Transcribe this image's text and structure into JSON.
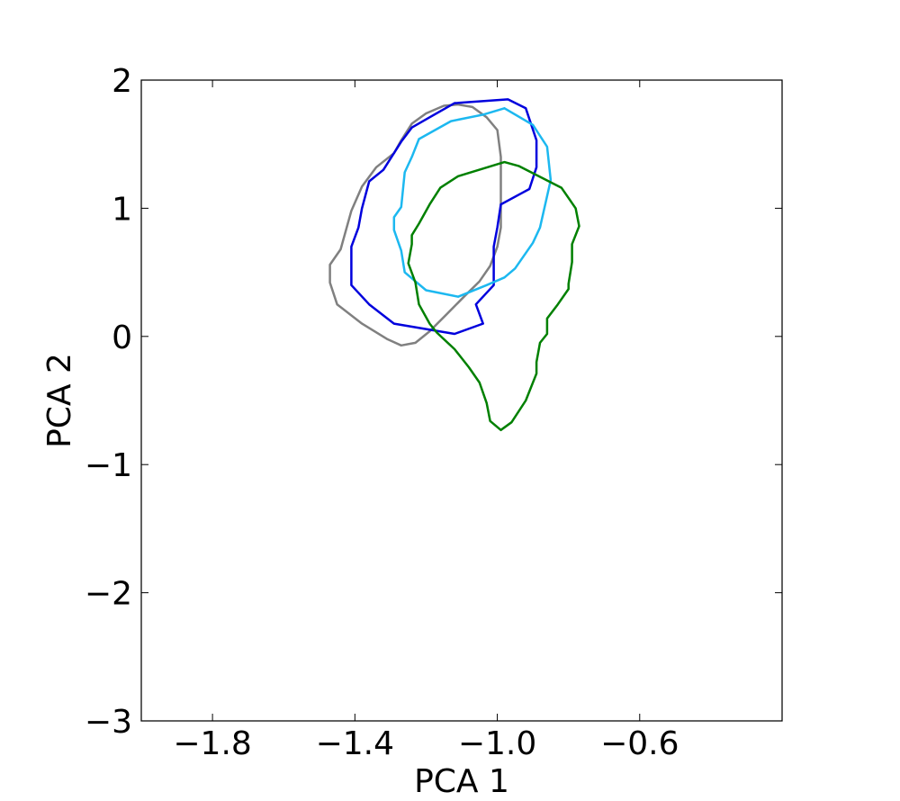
{
  "chart_data": {
    "type": "line",
    "title": "",
    "xlabel": "PCA 1",
    "ylabel": "PCA 2",
    "xlim": [
      -2.0,
      -0.2
    ],
    "ylim": [
      -3,
      2
    ],
    "xticks": [
      -1.8,
      -1.4,
      -1.0,
      -0.6
    ],
    "xtick_labels": [
      "−1.8",
      "−1.4",
      "−1.0",
      "−0.6"
    ],
    "yticks": [
      -3,
      -2,
      -1,
      0,
      1,
      2
    ],
    "ytick_labels": [
      "−3",
      "−2",
      "−1",
      "0",
      "1",
      "2"
    ],
    "grid": false,
    "series": [
      {
        "color": "#808080",
        "x": [
          -1.11,
          -1.07,
          -1.03,
          -1.0,
          -0.99,
          -0.99,
          -1.0,
          -1.02,
          -1.05,
          -1.09,
          -1.14,
          -1.19,
          -1.23,
          -1.27,
          -1.31,
          -1.38,
          -1.45,
          -1.47,
          -1.47,
          -1.44,
          -1.41,
          -1.38,
          -1.34,
          -1.29,
          -1.27,
          -1.24,
          -1.2,
          -1.15,
          -1.11
        ],
        "y": [
          1.81,
          1.79,
          1.71,
          1.61,
          1.4,
          0.85,
          0.7,
          0.55,
          0.43,
          0.32,
          0.18,
          0.04,
          -0.05,
          -0.07,
          -0.02,
          0.1,
          0.25,
          0.42,
          0.56,
          0.68,
          0.98,
          1.17,
          1.32,
          1.43,
          1.53,
          1.66,
          1.74,
          1.8,
          1.81
        ]
      },
      {
        "color": "#0000dd",
        "x": [
          -1.12,
          -0.97,
          -0.92,
          -0.89,
          -0.89,
          -0.91,
          -0.93,
          -0.99,
          -1.0,
          -1.01,
          -1.01,
          -1.06,
          -1.04,
          -1.05,
          -1.12,
          -1.29,
          -1.36,
          -1.41,
          -1.41,
          -1.39,
          -1.38,
          -1.36,
          -1.32,
          -1.27,
          -1.24,
          -1.19,
          -1.12
        ],
        "y": [
          1.82,
          1.85,
          1.78,
          1.53,
          1.32,
          1.15,
          1.12,
          1.03,
          0.85,
          0.7,
          0.4,
          0.25,
          0.1,
          0.09,
          0.02,
          0.1,
          0.25,
          0.4,
          0.7,
          0.85,
          1.0,
          1.21,
          1.3,
          1.52,
          1.63,
          1.71,
          1.82
        ]
      },
      {
        "color": "#1cb8f0",
        "x": [
          -0.98,
          -0.9,
          -0.86,
          -0.85,
          -0.88,
          -0.9,
          -0.95,
          -0.98,
          -1.03,
          -1.11,
          -1.2,
          -1.26,
          -1.27,
          -1.29,
          -1.29,
          -1.27,
          -1.26,
          -1.24,
          -1.22,
          -1.13,
          -1.04,
          -0.98
        ],
        "y": [
          1.78,
          1.65,
          1.48,
          1.22,
          0.85,
          0.73,
          0.53,
          0.46,
          0.4,
          0.31,
          0.36,
          0.5,
          0.67,
          0.83,
          0.93,
          1.01,
          1.28,
          1.4,
          1.54,
          1.68,
          1.73,
          1.78
        ]
      },
      {
        "color": "#008000",
        "x": [
          -0.98,
          -0.94,
          -0.82,
          -0.78,
          -0.77,
          -0.79,
          -0.79,
          -0.8,
          -0.8,
          -0.83,
          -0.86,
          -0.86,
          -0.88,
          -0.89,
          -0.89,
          -0.92,
          -0.96,
          -0.99,
          -1.02,
          -1.03,
          -1.05,
          -1.08,
          -1.12,
          -1.17,
          -1.19,
          -1.22,
          -1.23,
          -1.25,
          -1.24,
          -1.24,
          -1.22,
          -1.19,
          -1.16,
          -1.11,
          -0.98
        ],
        "y": [
          1.36,
          1.33,
          1.16,
          1.0,
          0.86,
          0.72,
          0.58,
          0.41,
          0.37,
          0.25,
          0.14,
          0.02,
          -0.05,
          -0.2,
          -0.29,
          -0.5,
          -0.67,
          -0.73,
          -0.66,
          -0.52,
          -0.36,
          -0.24,
          -0.1,
          0.03,
          0.1,
          0.25,
          0.42,
          0.57,
          0.72,
          0.79,
          0.88,
          1.03,
          1.16,
          1.25,
          1.36
        ]
      }
    ]
  }
}
